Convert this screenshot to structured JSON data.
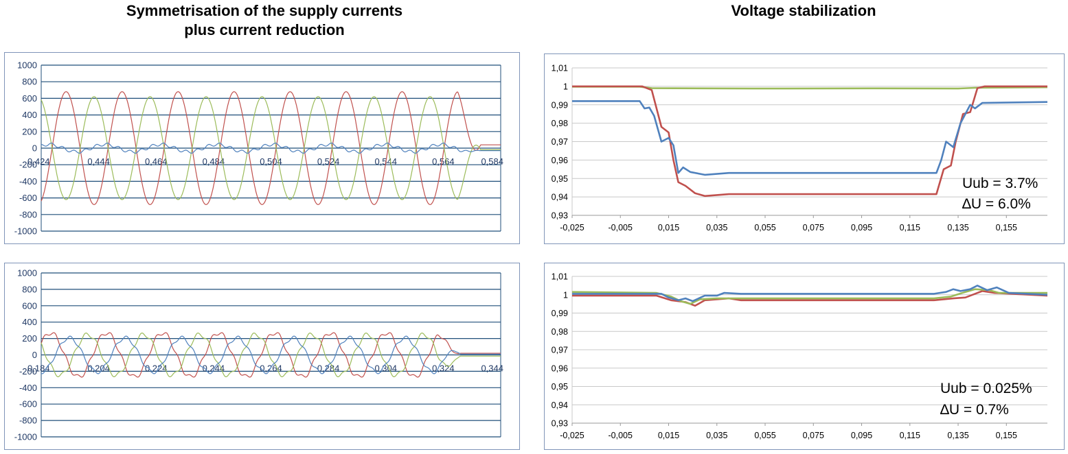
{
  "headings": {
    "left": "Symmetrisation of the supply currents plus current reduction",
    "left_line1": "Symmetrisation of the supply currents",
    "left_line2": "plus current reduction",
    "right": "Voltage stabilization"
  },
  "annotations": {
    "top": {
      "uub": "Uub = 3.7%",
      "du": "∆U = 6.0%"
    },
    "bottom": {
      "uub": "Uub = 0.025%",
      "du": "∆U = 0.7%"
    }
  },
  "colors": {
    "red": "#c0504d",
    "green": "#9bbb59",
    "blue": "#4f81bd",
    "grid_current": "#1f4e79",
    "grid_voltage": "#c8c8c8",
    "axis_text": "#1f3864"
  },
  "chart_data": [
    {
      "id": "current-before",
      "type": "line",
      "title": "",
      "ylim": [
        -1000,
        1000
      ],
      "yticks": [
        "1000",
        "800",
        "600",
        "400",
        "200",
        "0",
        "-200",
        "-400",
        "-600",
        "-800",
        "-1000"
      ],
      "xlim": [
        0.424,
        0.584
      ],
      "xticks": [
        "0,424",
        "0,444",
        "0,464",
        "0,484",
        "0,504",
        "0,524",
        "0,544",
        "0,564",
        "0,584"
      ],
      "series": [
        {
          "color": "red",
          "period": 0.0195,
          "amplitude": 680,
          "phase_deg": -70,
          "fade_start": 0.569,
          "tail": 40
        },
        {
          "color": "green",
          "period": 0.0195,
          "amplitude": 620,
          "phase_deg": 110,
          "fade_start": 0.569,
          "tail": -20
        },
        {
          "color": "blue",
          "period": 0.0195,
          "amplitude": 45,
          "phase_deg": 40,
          "fade_start": 0.569,
          "tail": -30
        }
      ]
    },
    {
      "id": "current-after",
      "type": "line",
      "title": "",
      "ylim": [
        -1000,
        1000
      ],
      "yticks": [
        "1000",
        "800",
        "600",
        "400",
        "200",
        "0",
        "-200",
        "-400",
        "-600",
        "-800",
        "-1000"
      ],
      "xlim": [
        0.184,
        0.344
      ],
      "xticks": [
        "0,184",
        "0,204",
        "0,224",
        "0,244",
        "0,264",
        "0,284",
        "0,304",
        "0,324",
        "0,344"
      ],
      "series": [
        {
          "color": "red",
          "period": 0.0195,
          "amplitude": 270,
          "phase_deg": 30,
          "fade_start": 0.322,
          "tail": 20
        },
        {
          "color": "green",
          "period": 0.0195,
          "amplitude": 250,
          "phase_deg": 150,
          "fade_start": 0.322,
          "tail": -15
        },
        {
          "color": "blue",
          "period": 0.0195,
          "amplitude": 210,
          "phase_deg": 270,
          "fade_start": 0.322,
          "tail": 10
        }
      ]
    },
    {
      "id": "voltage-before",
      "type": "line",
      "title": "",
      "ylim": [
        0.93,
        1.01
      ],
      "yticks": [
        "1,01",
        "1",
        "0,99",
        "0,98",
        "0,97",
        "0,96",
        "0,95",
        "0,94",
        "0,93"
      ],
      "xlim": [
        -0.025,
        0.172
      ],
      "xticks": [
        "-0,025",
        "-0,005",
        "0,015",
        "0,035",
        "0,055",
        "0,075",
        "0,095",
        "0,115",
        "0,135",
        "0,155"
      ],
      "series": [
        {
          "color": "green",
          "points": [
            [
              -0.025,
              0.9998
            ],
            [
              0.003,
              0.9998
            ],
            [
              0.008,
              0.999
            ],
            [
              0.05,
              0.9988
            ],
            [
              0.1,
              0.9989
            ],
            [
              0.135,
              0.9988
            ],
            [
              0.142,
              0.9992
            ],
            [
              0.172,
              0.9995
            ]
          ]
        },
        {
          "color": "red",
          "points": [
            [
              -0.025,
              1.0
            ],
            [
              0.004,
              1.0
            ],
            [
              0.008,
              0.998
            ],
            [
              0.012,
              0.978
            ],
            [
              0.015,
              0.975
            ],
            [
              0.017,
              0.96
            ],
            [
              0.019,
              0.948
            ],
            [
              0.022,
              0.946
            ],
            [
              0.026,
              0.942
            ],
            [
              0.03,
              0.9405
            ],
            [
              0.04,
              0.9415
            ],
            [
              0.06,
              0.9415
            ],
            [
              0.1,
              0.9415
            ],
            [
              0.126,
              0.9415
            ],
            [
              0.129,
              0.955
            ],
            [
              0.132,
              0.957
            ],
            [
              0.134,
              0.97
            ],
            [
              0.137,
              0.985
            ],
            [
              0.14,
              0.986
            ],
            [
              0.143,
              0.999
            ],
            [
              0.146,
              1.0
            ],
            [
              0.172,
              1.0
            ]
          ]
        },
        {
          "color": "blue",
          "points": [
            [
              -0.025,
              0.992
            ],
            [
              0.003,
              0.992
            ],
            [
              0.005,
              0.988
            ],
            [
              0.007,
              0.9885
            ],
            [
              0.009,
              0.984
            ],
            [
              0.012,
              0.97
            ],
            [
              0.015,
              0.972
            ],
            [
              0.017,
              0.968
            ],
            [
              0.019,
              0.953
            ],
            [
              0.021,
              0.956
            ],
            [
              0.024,
              0.9535
            ],
            [
              0.03,
              0.952
            ],
            [
              0.04,
              0.953
            ],
            [
              0.08,
              0.953
            ],
            [
              0.126,
              0.953
            ],
            [
              0.128,
              0.96
            ],
            [
              0.13,
              0.97
            ],
            [
              0.133,
              0.967
            ],
            [
              0.136,
              0.98
            ],
            [
              0.14,
              0.99
            ],
            [
              0.142,
              0.988
            ],
            [
              0.145,
              0.991
            ],
            [
              0.172,
              0.9915
            ]
          ]
        }
      ]
    },
    {
      "id": "voltage-after",
      "type": "line",
      "title": "",
      "ylim": [
        0.93,
        1.01
      ],
      "yticks": [
        "1,01",
        "1",
        "0,99",
        "0,98",
        "0,97",
        "0,96",
        "0,95",
        "0,94",
        "0,93"
      ],
      "xlim": [
        -0.025,
        0.172
      ],
      "xticks": [
        "-0,025",
        "-0,005",
        "0,015",
        "0,035",
        "0,055",
        "0,075",
        "0,095",
        "0,115",
        "0,135",
        "0,155"
      ],
      "series": [
        {
          "color": "red",
          "points": [
            [
              -0.025,
              0.9995
            ],
            [
              0.01,
              0.9995
            ],
            [
              0.016,
              0.997
            ],
            [
              0.022,
              0.996
            ],
            [
              0.026,
              0.994
            ],
            [
              0.03,
              0.997
            ],
            [
              0.04,
              0.998
            ],
            [
              0.045,
              0.997
            ],
            [
              0.08,
              0.997
            ],
            [
              0.125,
              0.997
            ],
            [
              0.133,
              0.998
            ],
            [
              0.138,
              0.9985
            ],
            [
              0.141,
              1.0
            ],
            [
              0.145,
              1.002
            ],
            [
              0.15,
              1.001
            ],
            [
              0.172,
              0.9995
            ]
          ]
        },
        {
          "color": "green",
          "points": [
            [
              -0.025,
              1.0015
            ],
            [
              0.01,
              1.001
            ],
            [
              0.016,
              0.999
            ],
            [
              0.02,
              0.9965
            ],
            [
              0.024,
              0.995
            ],
            [
              0.028,
              0.9975
            ],
            [
              0.035,
              0.998
            ],
            [
              0.08,
              0.998
            ],
            [
              0.125,
              0.998
            ],
            [
              0.132,
              0.999
            ],
            [
              0.138,
              1.0015
            ],
            [
              0.142,
              1.003
            ],
            [
              0.148,
              1.0025
            ],
            [
              0.152,
              1.001
            ],
            [
              0.172,
              1.001
            ]
          ]
        },
        {
          "color": "blue",
          "points": [
            [
              -0.025,
              1.0005
            ],
            [
              0.012,
              1.0005
            ],
            [
              0.015,
              0.9985
            ],
            [
              0.019,
              0.997
            ],
            [
              0.022,
              0.998
            ],
            [
              0.025,
              0.9965
            ],
            [
              0.03,
              0.9995
            ],
            [
              0.035,
              0.9995
            ],
            [
              0.038,
              1.001
            ],
            [
              0.045,
              1.0005
            ],
            [
              0.08,
              1.0005
            ],
            [
              0.125,
              1.0005
            ],
            [
              0.13,
              1.0015
            ],
            [
              0.133,
              1.003
            ],
            [
              0.136,
              1.002
            ],
            [
              0.14,
              1.003
            ],
            [
              0.143,
              1.005
            ],
            [
              0.147,
              1.0025
            ],
            [
              0.151,
              1.004
            ],
            [
              0.156,
              1.001
            ],
            [
              0.172,
              1.0
            ]
          ]
        }
      ]
    }
  ]
}
